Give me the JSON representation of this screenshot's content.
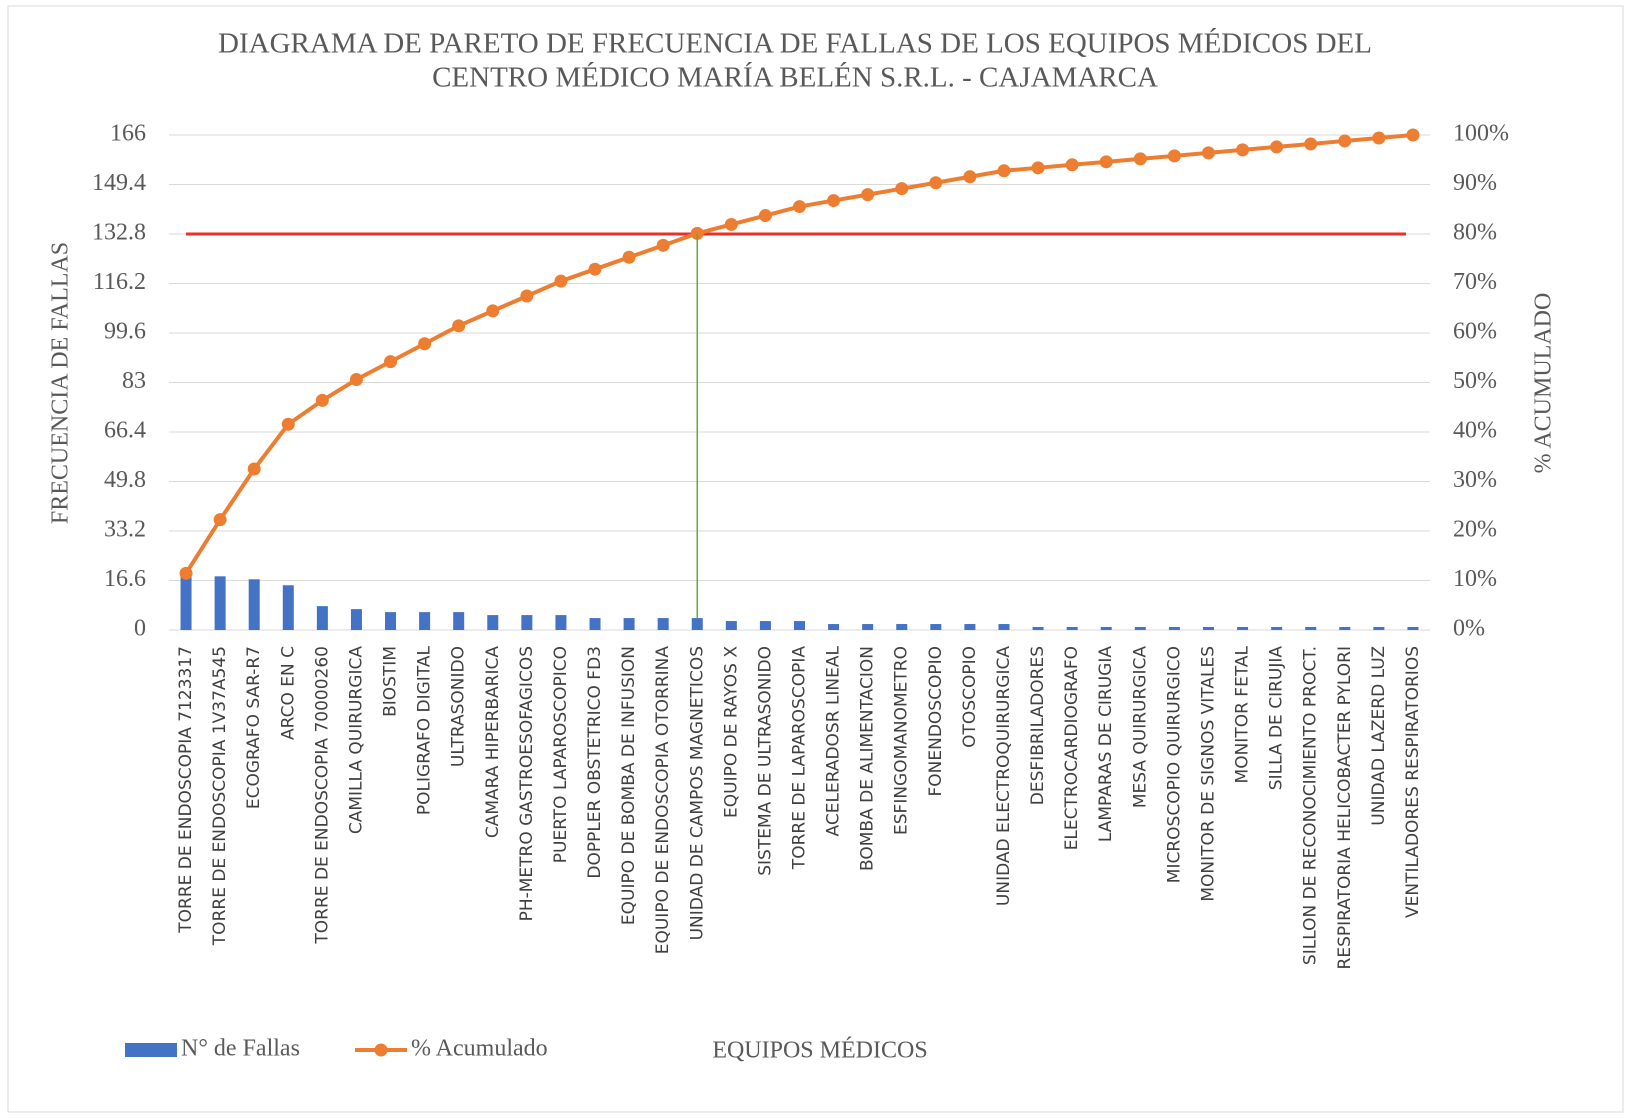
{
  "chart_data": {
    "type": "bar",
    "title_lines": [
      "DIAGRAMA DE PARETO DE FRECUENCIA DE FALLAS DE LOS EQUIPOS MÉDICOS DEL",
      "CENTRO MÉDICO MARÍA BELÉN S.R.L. - CAJAMARCA"
    ],
    "x_label": "EQUIPOS MÉDICOS",
    "y_label": "FRECUENCIA DE FALLAS",
    "y2_label": "% ACUMULADO",
    "categories": [
      "TORRE DE ENDOSCOPIA 7123317",
      "TORRE DE ENDOSCOPIA 1V37A545",
      "ECOGRAFO SAR-R7",
      "ARCO EN C",
      "TORRE DE ENDOSCOPIA 70000260",
      "CAMILLA QUIRURGICA",
      "BIOSTIM",
      "POLIGRAFO DIGITAL",
      "ULTRASONIDO",
      "CAMARA HIPERBARICA",
      "PH-METRO GASTROESOFAGICOS",
      "PUERTO LAPAROSCOPICO",
      "DOPPLER OBSTETRICO FD3",
      "EQUIPO DE BOMBA DE INFUSION",
      "EQUIPO DE ENDOSCOPIA OTORRINA",
      "UNIDAD DE CAMPOS MAGNETICOS",
      "EQUIPO DE RAYOS X",
      "SISTEMA DE ULTRASONIDO",
      "TORRE DE LAPAROSCOPIA",
      "ACELERADOSR LINEAL",
      "BOMBA DE ALIMENTACION",
      "ESFINGOMANOMETRO",
      "FONENDOSCOPIO",
      "OTOSCOPIO",
      "UNIDAD ELECTROQUIRURGICA",
      "DESFIBRILADORES",
      "ELECTROCARDIOGRAFO",
      "LAMPARAS DE CIRUGIA",
      "MESA QUIRURGICA",
      "MICROSCOPIO QUIRURGICO",
      "MONITOR DE SIGNOS VITALES",
      "MONITOR FETAL",
      "SILLA DE CIRUJIA",
      "SILLON DE RECONOCIMIENTO PROCT.",
      "RESPIRATORIA HELICOBACTER PYLORI",
      "UNIDAD LAZERD LUZ",
      "VENTILADORES RESPIRATORIOS"
    ],
    "series": [
      {
        "name": "N° de Fallas",
        "color": "#4472c4",
        "type": "bar",
        "values": [
          19,
          18,
          17,
          15,
          8,
          7,
          6,
          6,
          6,
          5,
          5,
          5,
          4,
          4,
          4,
          4,
          3,
          3,
          3,
          2,
          2,
          2,
          2,
          2,
          2,
          1,
          1,
          1,
          1,
          1,
          1,
          1,
          1,
          1,
          1,
          1,
          1
        ]
      },
      {
        "name": "% Acumulado",
        "color": "#ed7d31",
        "type": "line",
        "axis": "y2",
        "values": [
          11.45,
          22.29,
          32.53,
          41.57,
          46.39,
          50.6,
          54.22,
          57.83,
          61.45,
          64.46,
          67.47,
          70.48,
          72.89,
          75.3,
          77.71,
          80.12,
          81.93,
          83.73,
          85.54,
          86.75,
          87.95,
          89.16,
          90.36,
          91.57,
          92.77,
          93.37,
          93.98,
          94.58,
          95.18,
          95.78,
          96.39,
          96.99,
          97.59,
          98.19,
          98.8,
          99.4,
          100
        ]
      }
    ],
    "ylim": [
      0,
      166
    ],
    "yticks": [
      0,
      16.6,
      33.2,
      49.8,
      66.4,
      83,
      99.6,
      116.2,
      132.8,
      149.4,
      166
    ],
    "y2lim": [
      0,
      100
    ],
    "y2ticks": [
      {
        "value": 0,
        "label": "0%"
      },
      {
        "value": 10,
        "label": "10%"
      },
      {
        "value": 20,
        "label": "20%"
      },
      {
        "value": 30,
        "label": "30%"
      },
      {
        "value": 40,
        "label": "40%"
      },
      {
        "value": 50,
        "label": "50%"
      },
      {
        "value": 60,
        "label": "60%"
      },
      {
        "value": 70,
        "label": "70%"
      },
      {
        "value": 80,
        "label": "80%"
      },
      {
        "value": 90,
        "label": "90%"
      },
      {
        "value": 100,
        "label": "100%"
      }
    ],
    "grid": true,
    "legend": "bottom-left",
    "cutoff_line": {
      "y2": 80,
      "color": "#e8302a"
    },
    "cutoff_category": "UNIDAD DE CAMPOS MAGNETICOS",
    "cutoff_drop_color": "#5aae3a"
  }
}
